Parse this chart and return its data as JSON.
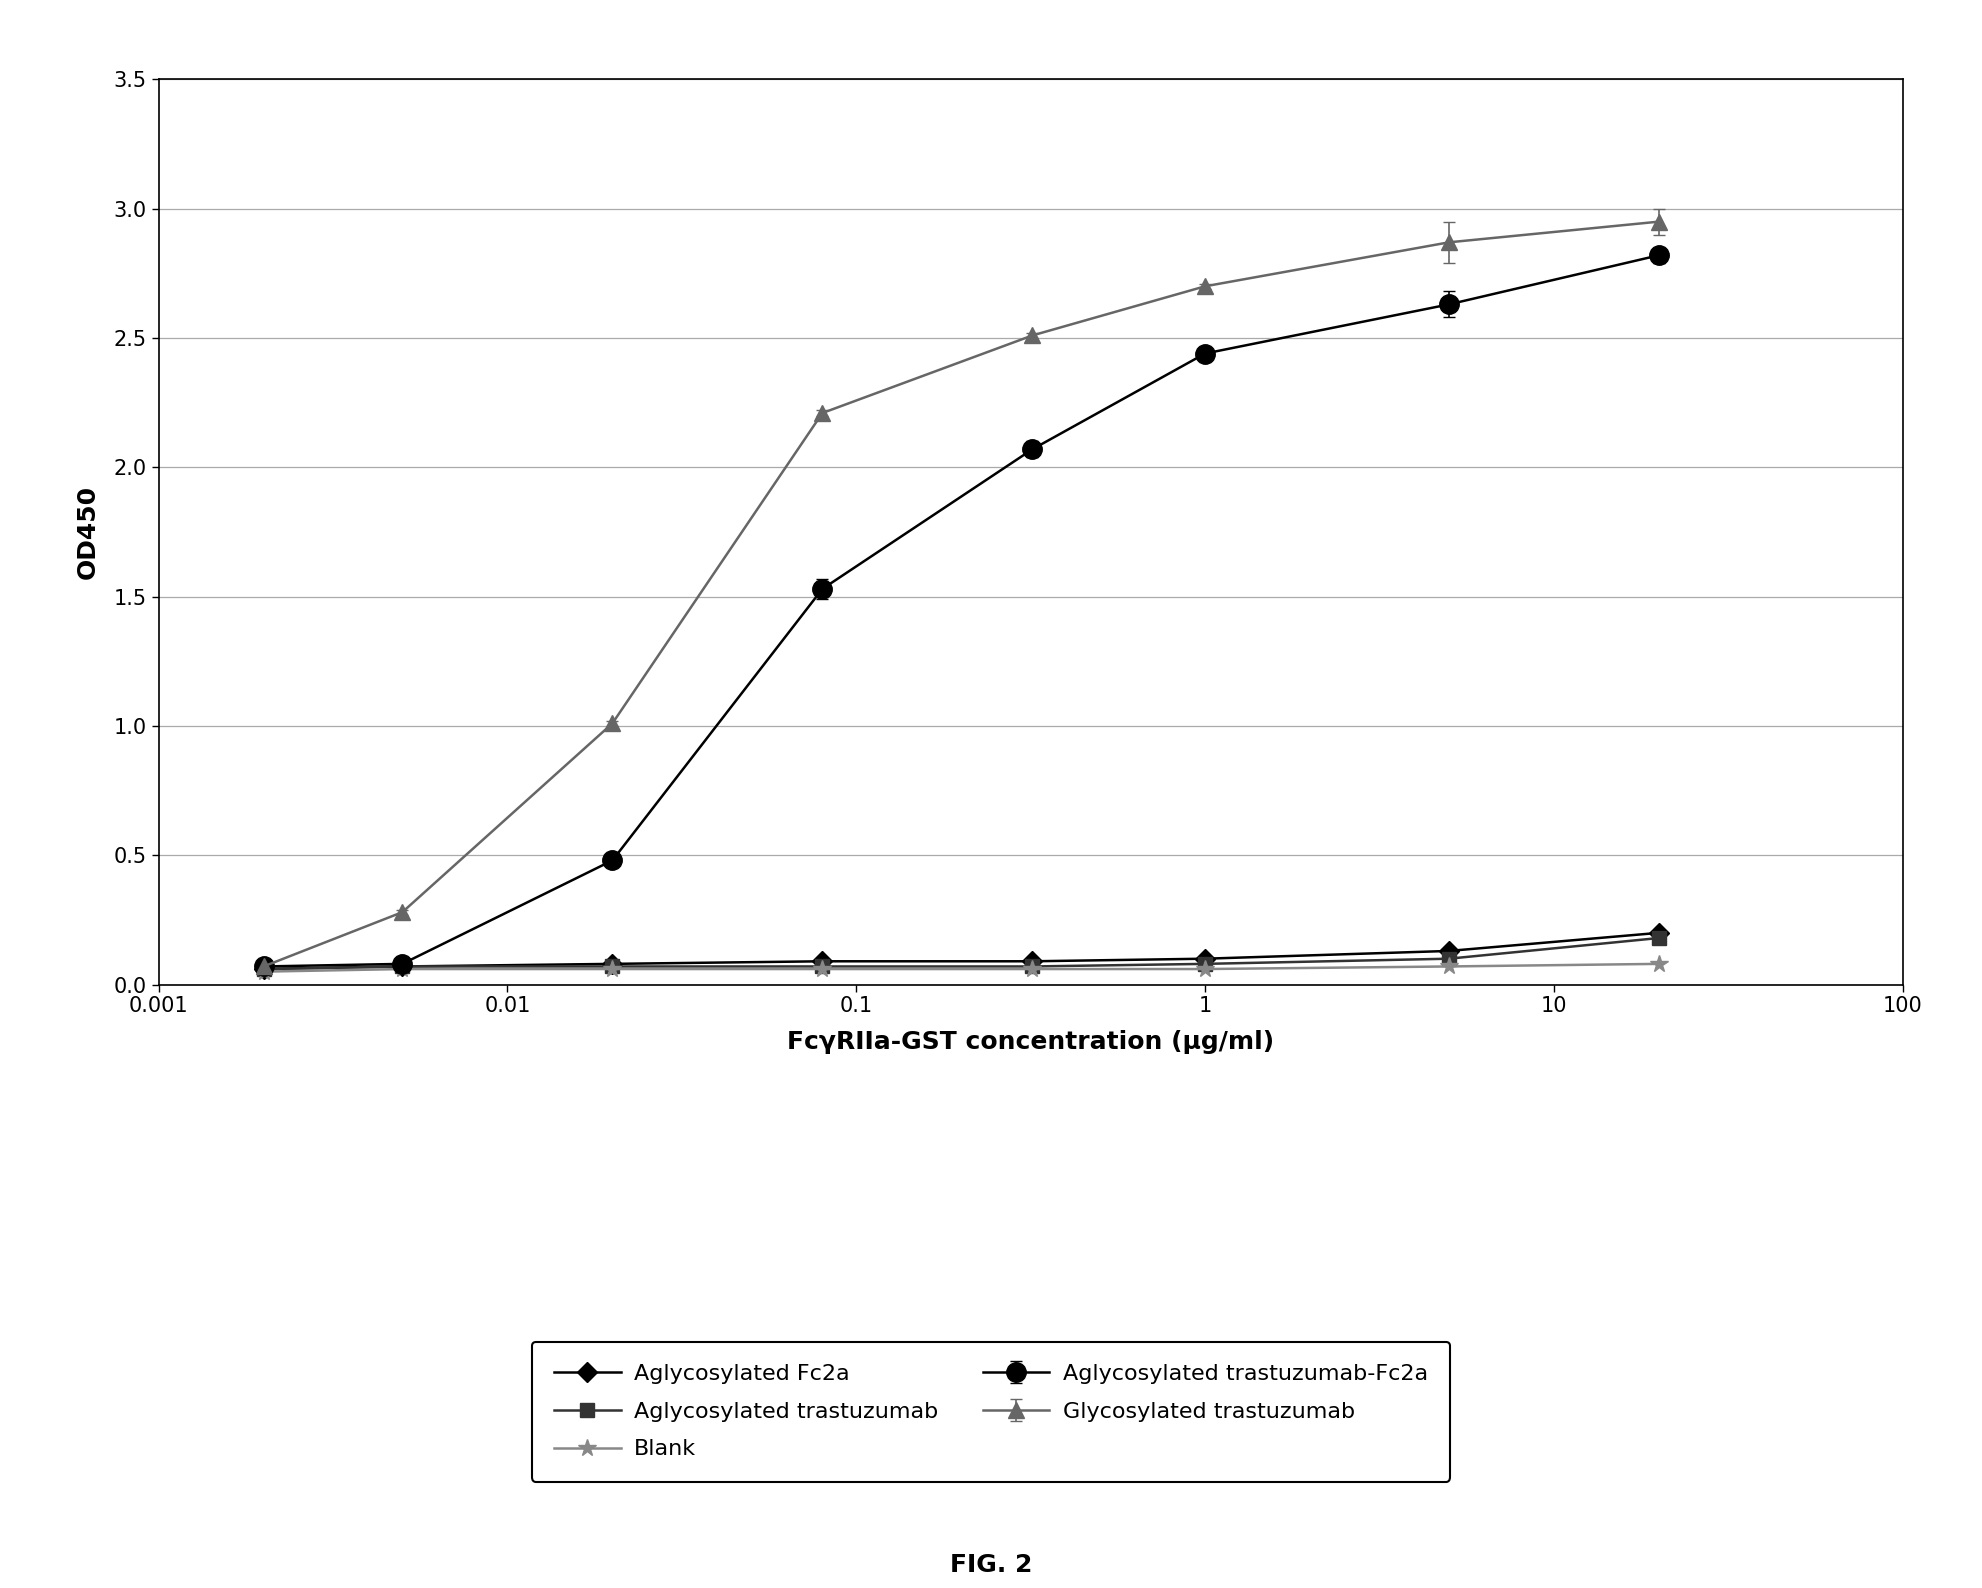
{
  "xlabel": "FcγRIIa-GST concentration (μg/ml)",
  "ylabel": "OD450",
  "xlim": [
    0.001,
    100
  ],
  "ylim": [
    0,
    3.5
  ],
  "yticks": [
    0,
    0.5,
    1,
    1.5,
    2,
    2.5,
    3,
    3.5
  ],
  "fig_caption": "FIG. 2",
  "series": [
    {
      "label": "Aglycosylated Fc2a",
      "x": [
        0.002,
        0.005,
        0.02,
        0.08,
        0.32,
        1.0,
        5.0,
        20.0
      ],
      "y": [
        0.06,
        0.07,
        0.08,
        0.09,
        0.09,
        0.1,
        0.13,
        0.2
      ],
      "color": "#000000",
      "marker": "D",
      "markersize": 10,
      "linewidth": 1.8,
      "linestyle": "-"
    },
    {
      "label": "Aglycosylated trastuzumab-Fc2a",
      "x": [
        0.002,
        0.005,
        0.02,
        0.08,
        0.32,
        1.0,
        5.0,
        20.0
      ],
      "y": [
        0.07,
        0.08,
        0.48,
        1.53,
        2.07,
        2.44,
        2.63,
        2.82
      ],
      "color": "#000000",
      "marker": "o",
      "markersize": 14,
      "linewidth": 1.8,
      "linestyle": "-",
      "yerr": [
        0.005,
        0.005,
        0.02,
        0.04,
        0.03,
        0.02,
        0.05,
        0.03
      ]
    },
    {
      "label": "Glycosylated trastuzumab",
      "x": [
        0.002,
        0.005,
        0.02,
        0.08,
        0.32,
        1.0,
        5.0,
        20.0
      ],
      "y": [
        0.07,
        0.28,
        1.01,
        2.21,
        2.51,
        2.7,
        2.87,
        2.95
      ],
      "color": "#666666",
      "marker": "^",
      "markersize": 12,
      "linewidth": 1.8,
      "linestyle": "-",
      "yerr": [
        0.005,
        0.01,
        0.01,
        0.01,
        0.01,
        0.01,
        0.08,
        0.05
      ]
    },
    {
      "label": "Aglycosylated trastuzumab",
      "x": [
        0.002,
        0.005,
        0.02,
        0.08,
        0.32,
        1.0,
        5.0,
        20.0
      ],
      "y": [
        0.06,
        0.07,
        0.07,
        0.07,
        0.07,
        0.08,
        0.1,
        0.18
      ],
      "color": "#333333",
      "marker": "s",
      "markersize": 10,
      "linewidth": 1.8,
      "linestyle": "-"
    },
    {
      "label": "Blank",
      "x": [
        0.002,
        0.005,
        0.02,
        0.08,
        0.32,
        1.0,
        5.0,
        20.0
      ],
      "y": [
        0.05,
        0.06,
        0.06,
        0.06,
        0.06,
        0.06,
        0.07,
        0.08
      ],
      "color": "#888888",
      "marker": "*",
      "markersize": 13,
      "linewidth": 1.8,
      "linestyle": "-"
    }
  ],
  "legend_order": [
    0,
    1,
    2,
    3,
    4
  ],
  "background_color": "#ffffff",
  "grid_color": "#aaaaaa"
}
